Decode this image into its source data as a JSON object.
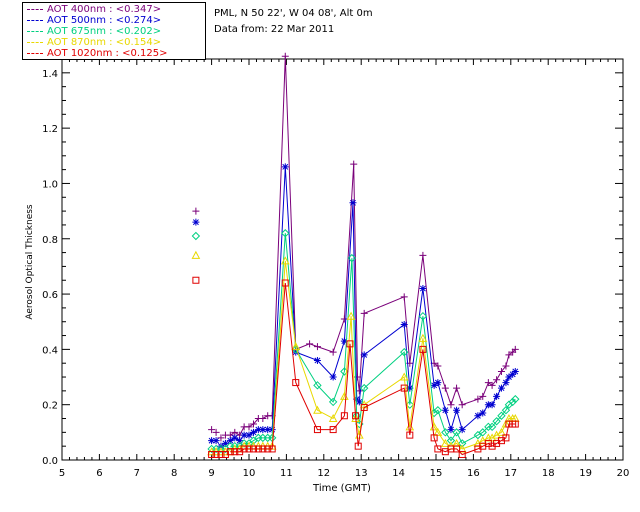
{
  "header": {
    "site_line": "PML, N 50 22', W 04 08', Alt 0m",
    "date_line": "Data from: 22 Mar 2011"
  },
  "legend": [
    {
      "label": "AOT  400nm : <0.347>",
      "color": "#7a007a"
    },
    {
      "label": "AOT  500nm : <0.274>",
      "color": "#0000d0"
    },
    {
      "label": "AOT  675nm : <0.202>",
      "color": "#00d080"
    },
    {
      "label": "AOT  870nm : <0.154>",
      "color": "#e8d800"
    },
    {
      "label": "AOT 1020nm : <0.125>",
      "color": "#e00000"
    }
  ],
  "chart_data": {
    "type": "line",
    "title": "",
    "xlabel": "Time (GMT)",
    "ylabel": "Aerosol Optical Thickness",
    "xlim": [
      5,
      20
    ],
    "ylim": [
      0.0,
      1.45
    ],
    "xticks": [
      "5",
      "6",
      "7",
      "8",
      "9",
      "10",
      "11",
      "12",
      "13",
      "14",
      "15",
      "16",
      "17",
      "18",
      "19",
      "20"
    ],
    "yticks": [
      "0.0",
      "0.2",
      "0.4",
      "0.6",
      "0.8",
      "1.0",
      "1.2",
      "1.4"
    ],
    "series": [
      {
        "name": "AOT 400nm",
        "color": "#7a007a",
        "marker": "plus",
        "points": [
          [
            8.58,
            0.9
          ],
          [
            9.0,
            0.11
          ],
          [
            9.12,
            0.1
          ],
          [
            9.25,
            0.08
          ],
          [
            9.37,
            0.09
          ],
          [
            9.5,
            0.09
          ],
          [
            9.62,
            0.1
          ],
          [
            9.75,
            0.09
          ],
          [
            9.87,
            0.12
          ],
          [
            10.0,
            0.12
          ],
          [
            10.12,
            0.13
          ],
          [
            10.25,
            0.15
          ],
          [
            10.37,
            0.15
          ],
          [
            10.5,
            0.16
          ],
          [
            10.62,
            0.16
          ],
          [
            10.97,
            1.46
          ],
          [
            11.25,
            0.4
          ],
          [
            11.62,
            0.42
          ],
          [
            11.83,
            0.41
          ],
          [
            12.25,
            0.39
          ],
          [
            12.55,
            0.51
          ],
          [
            12.8,
            1.07
          ],
          [
            12.9,
            0.3
          ],
          [
            12.95,
            0.25
          ],
          [
            13.08,
            0.53
          ],
          [
            14.15,
            0.59
          ],
          [
            14.3,
            0.35
          ],
          [
            14.65,
            0.74
          ],
          [
            14.95,
            0.35
          ],
          [
            15.05,
            0.34
          ],
          [
            15.25,
            0.26
          ],
          [
            15.4,
            0.2
          ],
          [
            15.55,
            0.26
          ],
          [
            15.7,
            0.2
          ],
          [
            16.12,
            0.22
          ],
          [
            16.25,
            0.23
          ],
          [
            16.4,
            0.28
          ],
          [
            16.5,
            0.27
          ],
          [
            16.62,
            0.29
          ],
          [
            16.75,
            0.32
          ],
          [
            16.87,
            0.34
          ],
          [
            16.95,
            0.38
          ],
          [
            17.05,
            0.39
          ],
          [
            17.12,
            0.4
          ]
        ],
        "connect_from": 5
      },
      {
        "name": "AOT 500nm",
        "color": "#0000d0",
        "marker": "star",
        "points": [
          [
            8.58,
            0.86
          ],
          [
            9.0,
            0.07
          ],
          [
            9.12,
            0.07
          ],
          [
            9.25,
            0.05
          ],
          [
            9.37,
            0.06
          ],
          [
            9.5,
            0.07
          ],
          [
            9.62,
            0.08
          ],
          [
            9.75,
            0.07
          ],
          [
            9.87,
            0.09
          ],
          [
            10.0,
            0.09
          ],
          [
            10.12,
            0.1
          ],
          [
            10.25,
            0.11
          ],
          [
            10.37,
            0.11
          ],
          [
            10.5,
            0.11
          ],
          [
            10.62,
            0.11
          ],
          [
            10.97,
            1.06
          ],
          [
            11.25,
            0.39
          ],
          [
            11.83,
            0.36
          ],
          [
            12.25,
            0.3
          ],
          [
            12.55,
            0.43
          ],
          [
            12.78,
            0.93
          ],
          [
            12.88,
            0.22
          ],
          [
            12.95,
            0.21
          ],
          [
            13.08,
            0.38
          ],
          [
            14.15,
            0.49
          ],
          [
            14.3,
            0.26
          ],
          [
            14.65,
            0.62
          ],
          [
            14.95,
            0.27
          ],
          [
            15.05,
            0.28
          ],
          [
            15.25,
            0.18
          ],
          [
            15.4,
            0.11
          ],
          [
            15.55,
            0.18
          ],
          [
            15.7,
            0.11
          ],
          [
            16.12,
            0.16
          ],
          [
            16.25,
            0.17
          ],
          [
            16.4,
            0.2
          ],
          [
            16.5,
            0.2
          ],
          [
            16.62,
            0.23
          ],
          [
            16.75,
            0.26
          ],
          [
            16.87,
            0.28
          ],
          [
            16.95,
            0.3
          ],
          [
            17.05,
            0.31
          ],
          [
            17.12,
            0.32
          ]
        ],
        "connect_from": 5
      },
      {
        "name": "AOT 675nm",
        "color": "#00d080",
        "marker": "diamond",
        "points": [
          [
            8.58,
            0.81
          ],
          [
            9.0,
            0.04
          ],
          [
            9.12,
            0.04
          ],
          [
            9.25,
            0.04
          ],
          [
            9.37,
            0.04
          ],
          [
            9.5,
            0.05
          ],
          [
            9.62,
            0.05
          ],
          [
            9.75,
            0.05
          ],
          [
            9.87,
            0.06
          ],
          [
            10.0,
            0.06
          ],
          [
            10.12,
            0.07
          ],
          [
            10.25,
            0.08
          ],
          [
            10.37,
            0.08
          ],
          [
            10.5,
            0.08
          ],
          [
            10.62,
            0.08
          ],
          [
            10.97,
            0.82
          ],
          [
            11.25,
            0.4
          ],
          [
            11.83,
            0.27
          ],
          [
            12.25,
            0.21
          ],
          [
            12.55,
            0.32
          ],
          [
            12.75,
            0.73
          ],
          [
            12.88,
            0.16
          ],
          [
            12.95,
            0.13
          ],
          [
            13.08,
            0.26
          ],
          [
            14.15,
            0.39
          ],
          [
            14.3,
            0.2
          ],
          [
            14.65,
            0.52
          ],
          [
            14.95,
            0.17
          ],
          [
            15.05,
            0.18
          ],
          [
            15.25,
            0.1
          ],
          [
            15.4,
            0.07
          ],
          [
            15.55,
            0.1
          ],
          [
            15.7,
            0.06
          ],
          [
            16.12,
            0.09
          ],
          [
            16.25,
            0.1
          ],
          [
            16.4,
            0.12
          ],
          [
            16.5,
            0.12
          ],
          [
            16.62,
            0.14
          ],
          [
            16.75,
            0.16
          ],
          [
            16.87,
            0.18
          ],
          [
            16.95,
            0.2
          ],
          [
            17.05,
            0.21
          ],
          [
            17.12,
            0.22
          ]
        ],
        "connect_from": 5
      },
      {
        "name": "AOT 870nm",
        "color": "#e8d800",
        "marker": "triangle",
        "points": [
          [
            8.58,
            0.74
          ],
          [
            9.0,
            0.03
          ],
          [
            9.12,
            0.03
          ],
          [
            9.25,
            0.03
          ],
          [
            9.37,
            0.03
          ],
          [
            9.5,
            0.03
          ],
          [
            9.62,
            0.04
          ],
          [
            9.75,
            0.04
          ],
          [
            9.87,
            0.05
          ],
          [
            10.0,
            0.05
          ],
          [
            10.12,
            0.05
          ],
          [
            10.25,
            0.05
          ],
          [
            10.37,
            0.05
          ],
          [
            10.5,
            0.05
          ],
          [
            10.62,
            0.05
          ],
          [
            10.97,
            0.72
          ],
          [
            11.25,
            0.41
          ],
          [
            11.83,
            0.18
          ],
          [
            12.25,
            0.15
          ],
          [
            12.55,
            0.23
          ],
          [
            12.73,
            0.52
          ],
          [
            12.85,
            0.15
          ],
          [
            12.95,
            0.09
          ],
          [
            13.08,
            0.2
          ],
          [
            14.15,
            0.3
          ],
          [
            14.3,
            0.12
          ],
          [
            14.65,
            0.44
          ],
          [
            14.95,
            0.12
          ],
          [
            15.05,
            0.1
          ],
          [
            15.25,
            0.06
          ],
          [
            15.4,
            0.05
          ],
          [
            15.55,
            0.06
          ],
          [
            15.7,
            0.04
          ],
          [
            16.12,
            0.06
          ],
          [
            16.25,
            0.07
          ],
          [
            16.4,
            0.08
          ],
          [
            16.5,
            0.08
          ],
          [
            16.62,
            0.09
          ],
          [
            16.75,
            0.1
          ],
          [
            16.87,
            0.13
          ],
          [
            16.95,
            0.15
          ],
          [
            17.05,
            0.15
          ],
          [
            17.12,
            0.15
          ]
        ],
        "connect_from": 5
      },
      {
        "name": "AOT 1020nm",
        "color": "#e00000",
        "marker": "square",
        "points": [
          [
            8.58,
            0.65
          ],
          [
            9.0,
            0.02
          ],
          [
            9.12,
            0.02
          ],
          [
            9.25,
            0.02
          ],
          [
            9.37,
            0.02
          ],
          [
            9.5,
            0.03
          ],
          [
            9.62,
            0.03
          ],
          [
            9.75,
            0.03
          ],
          [
            9.87,
            0.04
          ],
          [
            10.0,
            0.04
          ],
          [
            10.12,
            0.04
          ],
          [
            10.25,
            0.04
          ],
          [
            10.37,
            0.04
          ],
          [
            10.5,
            0.04
          ],
          [
            10.62,
            0.04
          ],
          [
            10.97,
            0.64
          ],
          [
            11.25,
            0.28
          ],
          [
            11.83,
            0.11
          ],
          [
            12.25,
            0.11
          ],
          [
            12.55,
            0.16
          ],
          [
            12.7,
            0.42
          ],
          [
            12.85,
            0.16
          ],
          [
            12.92,
            0.05
          ],
          [
            13.08,
            0.19
          ],
          [
            14.15,
            0.26
          ],
          [
            14.3,
            0.09
          ],
          [
            14.65,
            0.4
          ],
          [
            14.95,
            0.08
          ],
          [
            15.05,
            0.04
          ],
          [
            15.25,
            0.03
          ],
          [
            15.4,
            0.04
          ],
          [
            15.55,
            0.04
          ],
          [
            15.7,
            0.02
          ],
          [
            16.12,
            0.04
          ],
          [
            16.25,
            0.05
          ],
          [
            16.4,
            0.06
          ],
          [
            16.5,
            0.05
          ],
          [
            16.62,
            0.06
          ],
          [
            16.75,
            0.07
          ],
          [
            16.87,
            0.08
          ],
          [
            16.95,
            0.13
          ],
          [
            17.05,
            0.13
          ],
          [
            17.12,
            0.13
          ]
        ],
        "connect_from": 5
      }
    ]
  }
}
